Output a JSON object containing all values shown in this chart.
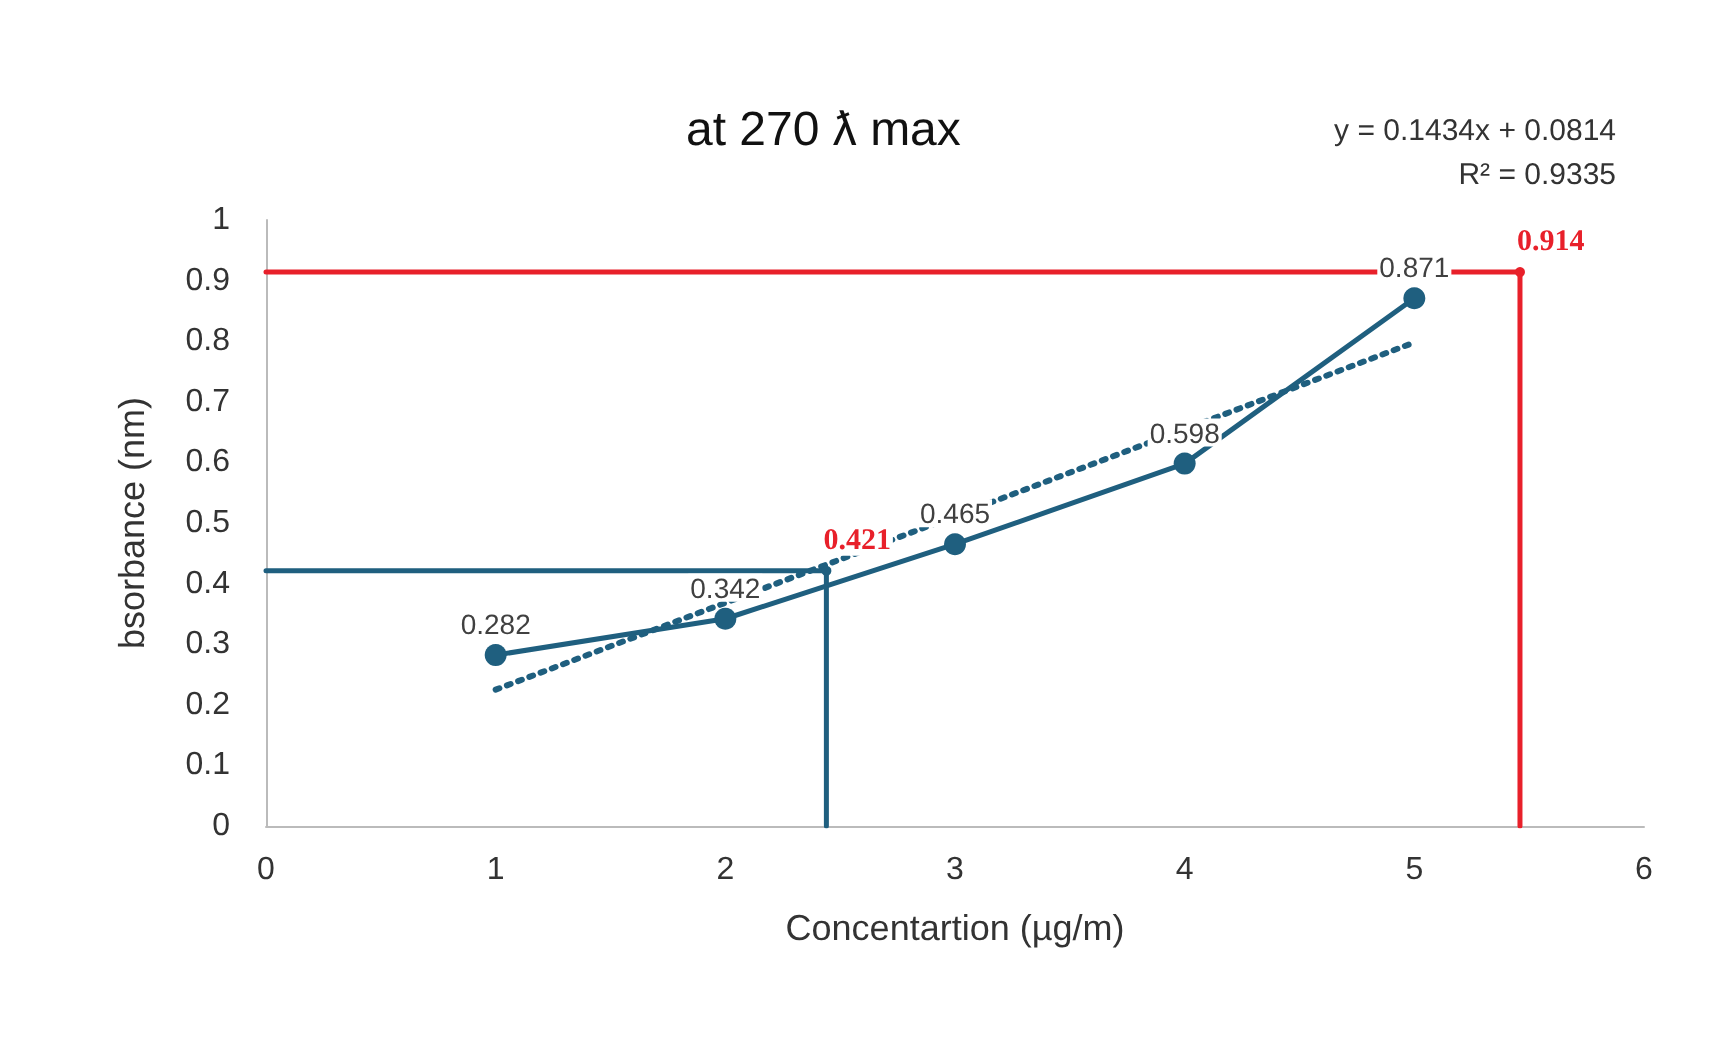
{
  "chart_data": {
    "type": "line",
    "title": "at 270 ƛ max",
    "xlabel": "Concentartion (µg/m)",
    "ylabel": "bsorbance (nm)",
    "annotations": [
      "y = 0.1434x + 0.0814",
      "R² = 0.9335"
    ],
    "xlim": [
      0,
      6
    ],
    "xticks": [
      0,
      1,
      2,
      3,
      4,
      5,
      6
    ],
    "ylim": [
      0,
      1
    ],
    "yticks": [
      0,
      0.1,
      0.2,
      0.3,
      0.4,
      0.5,
      0.6,
      0.7,
      0.8,
      0.9,
      1
    ],
    "grid": false,
    "series": [
      {
        "color": "#1f5f7f",
        "x": [
          1,
          2,
          3,
          4,
          5
        ],
        "values": [
          0.282,
          0.342,
          0.465,
          0.598,
          0.871
        ],
        "marker": "circle",
        "line_style": "solid",
        "data_labels": true
      },
      {
        "color": "#1f5f7f",
        "x": [
          1,
          5
        ],
        "values": [
          0.225,
          0.798
        ],
        "marker": "none",
        "line_style": "dotted"
      },
      {
        "color": "#1f5f7f",
        "x": [
          0,
          2.44,
          2.44
        ],
        "values": [
          0.421,
          0.421,
          0
        ],
        "marker": "none",
        "line_style": "solid",
        "value_labels": [
          null,
          "0.421",
          null
        ]
      },
      {
        "color": "#e8202a",
        "x": [
          0,
          5.46,
          5.46
        ],
        "values": [
          0.914,
          0.914,
          0
        ],
        "marker": "none",
        "line_style": "solid",
        "value_labels": [
          null,
          "0.914",
          null
        ]
      }
    ]
  }
}
